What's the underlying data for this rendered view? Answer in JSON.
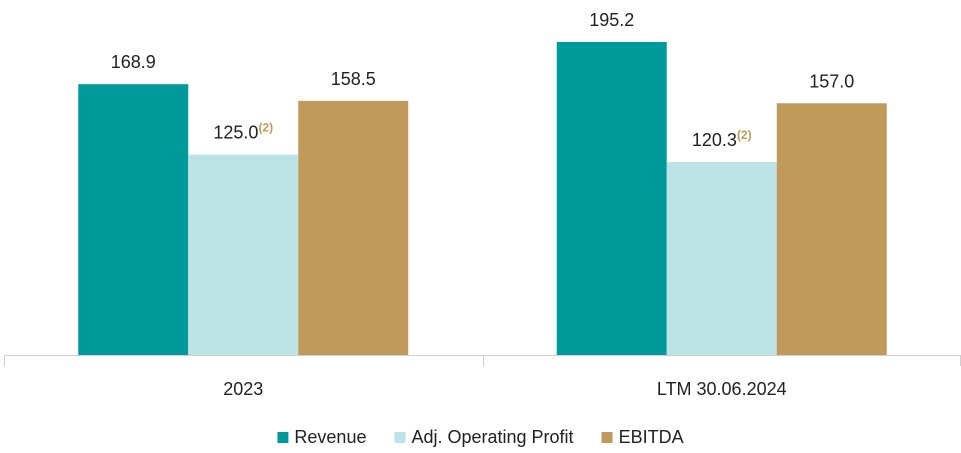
{
  "chart_data": {
    "type": "bar",
    "categories": [
      "2023",
      "LTM 30.06.2024"
    ],
    "series": [
      {
        "name": "Revenue",
        "color": "#009a9a",
        "values": [
          168.9,
          195.2
        ],
        "value_labels": [
          "168.9",
          "195.2"
        ]
      },
      {
        "name": "Adj. Operating Profit",
        "color": "#bce3e5",
        "values": [
          125.0,
          120.3
        ],
        "value_labels": [
          "125.0",
          "120.3"
        ],
        "footnotes": [
          "(2)",
          "(2)"
        ]
      },
      {
        "name": "EBITDA",
        "color": "#c09a5a",
        "values": [
          158.5,
          157.0
        ],
        "value_labels": [
          "158.5",
          "157.0"
        ]
      }
    ],
    "footnote_color": "#c09a5a",
    "legend": "bottom"
  }
}
